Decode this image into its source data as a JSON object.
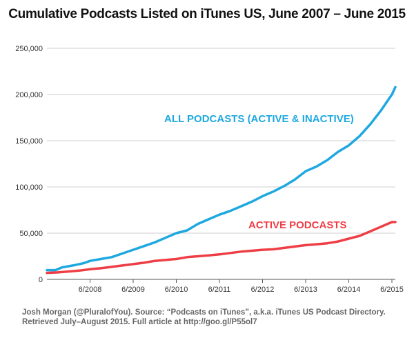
{
  "chart_data": {
    "type": "line",
    "title": "Cumulative Podcasts Listed on iTunes US, June 2007 – June 2015",
    "xlabel": "",
    "ylabel": "",
    "xlim": [
      2007.0,
      2015.08
    ],
    "ylim": [
      0,
      250000
    ],
    "grid": true,
    "y_ticks": [
      0,
      50000,
      100000,
      150000,
      200000,
      250000
    ],
    "y_tick_labels": [
      "0",
      "50,000",
      "100,000",
      "150,000",
      "200,000",
      "250,000"
    ],
    "x_ticks": [
      2008,
      2009,
      2010,
      2011,
      2012,
      2013,
      2014,
      2015
    ],
    "x_tick_labels": [
      "6/2008",
      "6/2009",
      "6/2010",
      "6/2011",
      "6/2012",
      "6/2013",
      "6/2014",
      "6/2015"
    ],
    "series": [
      {
        "name": "ALL PODCASTS (ACTIVE & INACTIVE)",
        "color": "#1ea8e0",
        "x": [
          2007.0,
          2007.2,
          2007.35,
          2007.6,
          2007.85,
          2008.0,
          2008.25,
          2008.5,
          2008.75,
          2009.0,
          2009.25,
          2009.5,
          2009.75,
          2010.0,
          2010.25,
          2010.5,
          2010.75,
          2011.0,
          2011.25,
          2011.5,
          2011.75,
          2012.0,
          2012.25,
          2012.5,
          2012.75,
          2013.0,
          2013.25,
          2013.5,
          2013.75,
          2014.0,
          2014.25,
          2014.5,
          2014.75,
          2015.0,
          2015.08
        ],
        "y": [
          10000,
          10000,
          13000,
          15000,
          17500,
          20000,
          22000,
          24000,
          28000,
          32000,
          36000,
          40000,
          45000,
          50000,
          53000,
          60000,
          65000,
          70000,
          74000,
          79000,
          84000,
          90000,
          95000,
          101000,
          108000,
          117000,
          122000,
          129000,
          138000,
          145000,
          155000,
          168000,
          183000,
          200000,
          208000
        ]
      },
      {
        "name": "ACTIVE PODCASTS",
        "color": "#ee3e45",
        "x": [
          2007.0,
          2007.25,
          2007.5,
          2007.75,
          2008.0,
          2008.25,
          2008.5,
          2008.75,
          2009.0,
          2009.25,
          2009.5,
          2009.75,
          2010.0,
          2010.25,
          2010.5,
          2010.75,
          2011.0,
          2011.25,
          2011.5,
          2011.75,
          2012.0,
          2012.25,
          2012.5,
          2012.75,
          2013.0,
          2013.25,
          2013.5,
          2013.75,
          2014.0,
          2014.25,
          2014.5,
          2014.75,
          2015.0,
          2015.08
        ],
        "y": [
          7000,
          7500,
          8500,
          9500,
          11000,
          12000,
          13500,
          15000,
          16500,
          18000,
          20000,
          21000,
          22000,
          24000,
          25000,
          26000,
          27000,
          28500,
          30000,
          31000,
          32000,
          32500,
          34000,
          35500,
          37000,
          38000,
          39000,
          41000,
          44000,
          47000,
          52000,
          57000,
          62000,
          62000
        ]
      }
    ]
  },
  "source_note": {
    "line1": "Josh Morgan (@PluralofYou). Source: “Podcasts on iTunes”, a.k.a. iTunes US Podcast Directory.",
    "line2": "Retrieved July–August 2015. Full article at http://goo.gl/P55ol7"
  }
}
